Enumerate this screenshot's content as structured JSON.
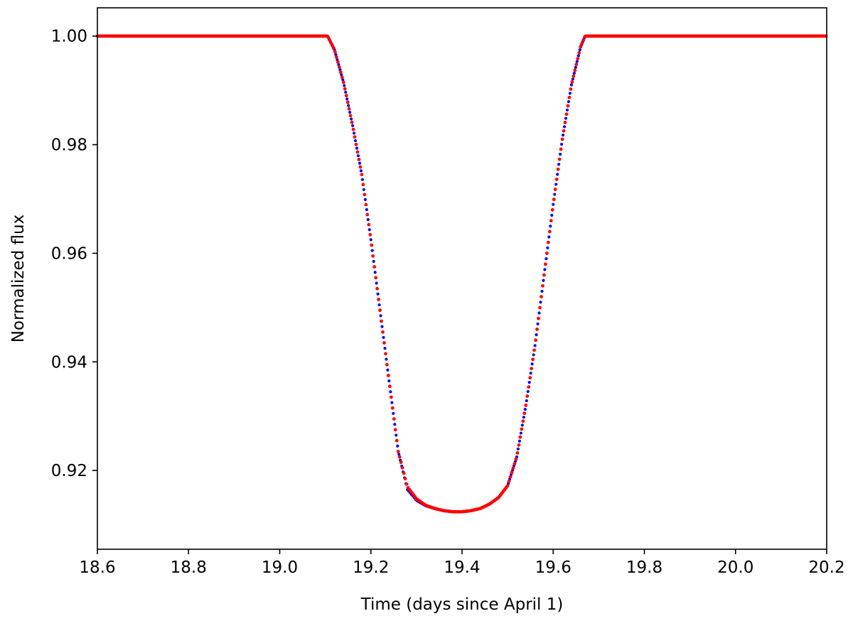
{
  "chart_data": {
    "type": "scatter",
    "title": "",
    "xlabel": "Time (days since April 1)",
    "ylabel": "Normalized flux",
    "xlim": [
      18.6,
      20.2
    ],
    "ylim": [
      0.9055,
      1.0052
    ],
    "xticks": [
      18.6,
      18.8,
      19.0,
      19.2,
      19.4,
      19.6,
      19.8,
      20.0,
      20.2
    ],
    "xtick_labels": [
      "18.6",
      "18.8",
      "19.0",
      "19.2",
      "19.4",
      "19.6",
      "19.8",
      "20.0",
      "20.2"
    ],
    "yticks": [
      0.92,
      0.94,
      0.96,
      0.98,
      1.0
    ],
    "ytick_labels": [
      "0.92",
      "0.94",
      "0.96",
      "0.98",
      "1.00"
    ],
    "grid": false,
    "legend": "none",
    "series": [
      {
        "color": "#0000ff",
        "x": [
          18.6,
          18.7,
          18.8,
          18.9,
          19.0,
          19.1,
          19.105,
          19.12,
          19.14,
          19.16,
          19.18,
          19.2,
          19.22,
          19.24,
          19.26,
          19.28,
          19.3,
          19.32,
          19.34,
          19.36,
          19.38,
          19.4,
          19.42,
          19.44,
          19.46,
          19.48,
          19.5,
          19.52,
          19.54,
          19.56,
          19.58,
          19.6,
          19.62,
          19.64,
          19.66,
          19.67,
          19.7,
          19.8,
          19.9,
          20.0,
          20.1,
          20.2
        ],
        "y": [
          1.0,
          1.0,
          1.0,
          1.0,
          1.0,
          1.0,
          1.0,
          0.9975,
          0.9915,
          0.9835,
          0.9745,
          0.9625,
          0.9495,
          0.9365,
          0.9235,
          0.9165,
          0.9145,
          0.9135,
          0.913,
          0.9126,
          0.9124,
          0.9124,
          0.9126,
          0.913,
          0.9138,
          0.915,
          0.9172,
          0.9225,
          0.932,
          0.943,
          0.956,
          0.969,
          0.981,
          0.991,
          0.998,
          1.0,
          1.0,
          1.0,
          1.0,
          1.0,
          1.0,
          1.0
        ]
      },
      {
        "color": "#ff0000",
        "x": [
          18.6,
          18.7,
          18.8,
          18.9,
          19.0,
          19.1,
          19.105,
          19.12,
          19.14,
          19.16,
          19.18,
          19.2,
          19.22,
          19.24,
          19.26,
          19.28,
          19.3,
          19.32,
          19.34,
          19.36,
          19.38,
          19.4,
          19.42,
          19.44,
          19.46,
          19.48,
          19.5,
          19.52,
          19.54,
          19.56,
          19.58,
          19.6,
          19.62,
          19.64,
          19.66,
          19.67,
          19.7,
          19.8,
          19.9,
          20.0,
          20.1,
          20.2
        ],
        "y": [
          1.0,
          1.0,
          1.0,
          1.0,
          1.0,
          1.0,
          1.0,
          0.9975,
          0.9915,
          0.9835,
          0.9745,
          0.9625,
          0.9495,
          0.9365,
          0.9235,
          0.917,
          0.9148,
          0.9136,
          0.913,
          0.9126,
          0.9124,
          0.9124,
          0.9126,
          0.913,
          0.9138,
          0.915,
          0.9172,
          0.9225,
          0.932,
          0.943,
          0.956,
          0.969,
          0.981,
          0.991,
          0.998,
          1.0,
          1.0,
          1.0,
          1.0,
          1.0,
          1.0,
          1.0
        ]
      }
    ]
  }
}
